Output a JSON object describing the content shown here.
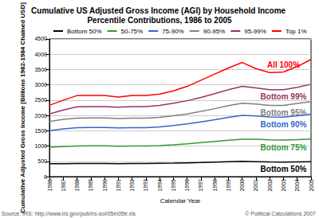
{
  "chart_data": {
    "type": "line",
    "title": "Cumulative US Adjusted Gross Income (AGI) by Household Income Percentile Contributions, 1986 to 2005",
    "x_label": "Calendar Year",
    "y_label": "Cumulative Adjusted Gross Income [Billions 1982-1984 Chained USD]",
    "categories": [
      "1986",
      "1987",
      "1988",
      "1989",
      "1990",
      "1991",
      "1992",
      "1993",
      "1994",
      "1995",
      "1996",
      "1997",
      "1998",
      "1999",
      "2000",
      "2001",
      "2002",
      "2003",
      "2004",
      "2005"
    ],
    "stacked": true,
    "grid": true,
    "legend": "top",
    "ylim": [
      0,
      4500
    ],
    "yticks": [
      0,
      500,
      1000,
      1500,
      2000,
      2500,
      3000,
      3500,
      4000,
      4500
    ],
    "series": [
      {
        "name": "Bottom 50%",
        "color": "#000000",
        "values": [
          420,
          425,
          430,
          430,
          430,
          425,
          430,
          430,
          435,
          440,
          450,
          460,
          475,
          490,
          500,
          490,
          480,
          475,
          480,
          485
        ]
      },
      {
        "name": "50-75%",
        "color": "#339933",
        "values": [
          540,
          555,
          570,
          575,
          575,
          570,
          570,
          570,
          580,
          600,
          620,
          650,
          675,
          700,
          720,
          730,
          720,
          720,
          730,
          745
        ]
      },
      {
        "name": "75-90%",
        "color": "#3366cc",
        "values": [
          540,
          580,
          600,
          600,
          600,
          595,
          600,
          600,
          610,
          630,
          650,
          680,
          710,
          750,
          780,
          765,
          750,
          750,
          780,
          810
        ]
      },
      {
        "name": "90-95%",
        "color": "#808080",
        "values": [
          300,
          310,
          310,
          310,
          310,
          310,
          310,
          310,
          315,
          320,
          330,
          340,
          360,
          380,
          400,
          385,
          380,
          385,
          400,
          410
        ]
      },
      {
        "name": "95-99%",
        "color": "#993366",
        "values": [
          250,
          310,
          370,
          375,
          375,
          370,
          380,
          380,
          390,
          410,
          430,
          460,
          490,
          520,
          550,
          530,
          510,
          510,
          530,
          570
        ]
      },
      {
        "name": "Top 1%",
        "color": "#ff0000",
        "values": [
          280,
          320,
          370,
          360,
          360,
          330,
          360,
          360,
          370,
          400,
          470,
          560,
          640,
          710,
          780,
          630,
          560,
          580,
          680,
          810
        ]
      }
    ],
    "annotations": [
      {
        "text": "Bottom 50%",
        "series": "Bottom 50%"
      },
      {
        "text": "Bottom 75%",
        "series": "50-75%"
      },
      {
        "text": "Bottom 90%",
        "series": "75-90%"
      },
      {
        "text": "Bottom 95%",
        "series": "90-95%"
      },
      {
        "text": "Bottom 99%",
        "series": "95-99%"
      },
      {
        "text": "All 100%",
        "series": "Top 1%"
      }
    ],
    "source": "Source: IRS: http://www.irs.gov/pub/irs-soi/05in05tr.xls",
    "copyright": "© Political Calculations 2007"
  }
}
